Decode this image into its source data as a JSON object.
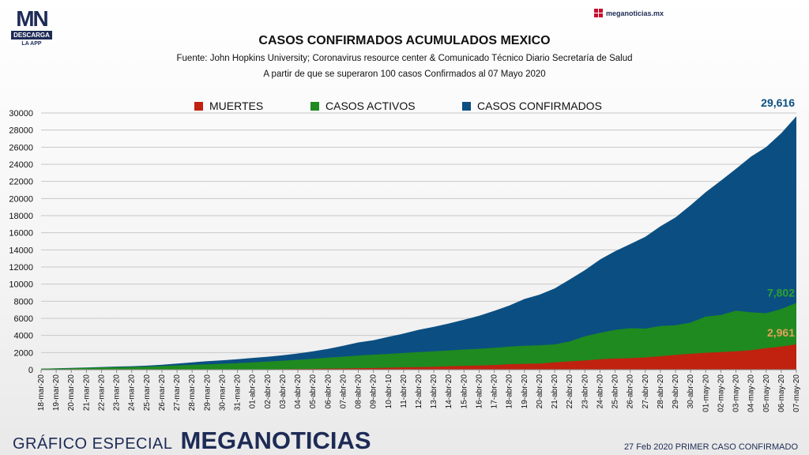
{
  "header": {
    "logo_text": "MN",
    "logo_band": "DESCARGA",
    "logo_sub": "LA APP",
    "site": "meganoticias.mx"
  },
  "title": "CASOS CONFIRMADOS ACUMULADOS MEXICO",
  "subtitle1": "Fuente: John Hopkins University; Coronavirus resource center & Comunicado Técnico Diario Secretaría de Salud",
  "subtitle2": "A partir de que se superaron 100 casos Confirmados al 07 Mayo 2020",
  "footer": {
    "left_text": "GRÁFICO ESPECIAL",
    "brand": "MEGANOTICIAS",
    "right_text": "27 Feb 2020 PRIMER CASO CONFIRMADO"
  },
  "colors": {
    "muertes": "#c0220f",
    "activos": "#1f8a1f",
    "confirmados": "#0b4f82",
    "activos_label": "#2ea02e",
    "muertes_label": "#e3a25a",
    "confirmados_label": "#0b4f82"
  },
  "chart_data": {
    "type": "area",
    "stacked": false,
    "x": [
      "18-mar-20",
      "19-mar-20",
      "20-mar-20",
      "21-mar-20",
      "22-mar-20",
      "23-mar-20",
      "24-mar-20",
      "25-mar-20",
      "26-mar-20",
      "27-mar-20",
      "28-mar-20",
      "29-mar-20",
      "30-mar-20",
      "31-mar-20",
      "01-abr-20",
      "02-abr-20",
      "03-abr-20",
      "04-abr-20",
      "05-abr-20",
      "06-abr-20",
      "07-abr-20",
      "08-abr-20",
      "09-abr-20",
      "10-abr-10",
      "11-abr-20",
      "12-abr-20",
      "13-abr-20",
      "14-abr-20",
      "15-abr-20",
      "16-abr-20",
      "17-abr-20",
      "18-abr-20",
      "19-abr-20",
      "20-abr-20",
      "21-abr-20",
      "22-abr-20",
      "23-abr-20",
      "24-abr-20",
      "25-abr-20",
      "26-abr-20",
      "27-abr-20",
      "28-abr-20",
      "29-abr-20",
      "30-abr-20",
      "01-may-20",
      "02-may-20",
      "03-may-20",
      "04-may-20",
      "05-may-20",
      "06-may-20",
      "07-may-20"
    ],
    "series": [
      {
        "name": "CASOS CONFIRMADOS",
        "values": [
          118,
          164,
          203,
          251,
          316,
          367,
          405,
          475,
          585,
          717,
          848,
          993,
          1094,
          1215,
          1378,
          1510,
          1688,
          1890,
          2143,
          2439,
          2785,
          3181,
          3441,
          3844,
          4219,
          4661,
          5014,
          5399,
          5847,
          6297,
          6875,
          7497,
          8261,
          8772,
          9501,
          10544,
          11633,
          12872,
          13842,
          14677,
          15529,
          16752,
          17799,
          19224,
          20739,
          22088,
          23471,
          24905,
          26025,
          27634,
          29616
        ]
      },
      {
        "name": "CASOS ACTIVOS",
        "values": [
          110,
          150,
          180,
          220,
          270,
          300,
          320,
          360,
          420,
          500,
          560,
          630,
          690,
          770,
          860,
          950,
          1050,
          1150,
          1270,
          1400,
          1520,
          1650,
          1750,
          1850,
          1950,
          2050,
          2150,
          2250,
          2350,
          2450,
          2550,
          2700,
          2800,
          2850,
          2950,
          3300,
          3900,
          4300,
          4650,
          4850,
          4800,
          5100,
          5200,
          5500,
          6200,
          6400,
          6900,
          6700,
          6600,
          7100,
          7802
        ]
      },
      {
        "name": "MUERTES",
        "values": [
          1,
          1,
          2,
          2,
          2,
          4,
          5,
          6,
          8,
          12,
          16,
          20,
          28,
          29,
          37,
          50,
          60,
          79,
          94,
          125,
          141,
          174,
          194,
          233,
          273,
          296,
          332,
          406,
          449,
          486,
          546,
          650,
          686,
          712,
          857,
          970,
          1069,
          1221,
          1305,
          1351,
          1434,
          1569,
          1732,
          1859,
          1972,
          2061,
          2154,
          2271,
          2507,
          2704,
          2961
        ]
      }
    ],
    "ylim": [
      0,
      30000
    ],
    "yticks": [
      0,
      2000,
      4000,
      6000,
      8000,
      10000,
      12000,
      14000,
      16000,
      18000,
      20000,
      22000,
      24000,
      26000,
      28000,
      30000
    ],
    "legend": [
      "MUERTES",
      "CASOS ACTIVOS",
      "CASOS CONFIRMADOS"
    ],
    "legend_position": "top",
    "grid": true,
    "end_labels": {
      "confirmados": "29,616",
      "activos": "7,802",
      "muertes": "2,961"
    }
  }
}
